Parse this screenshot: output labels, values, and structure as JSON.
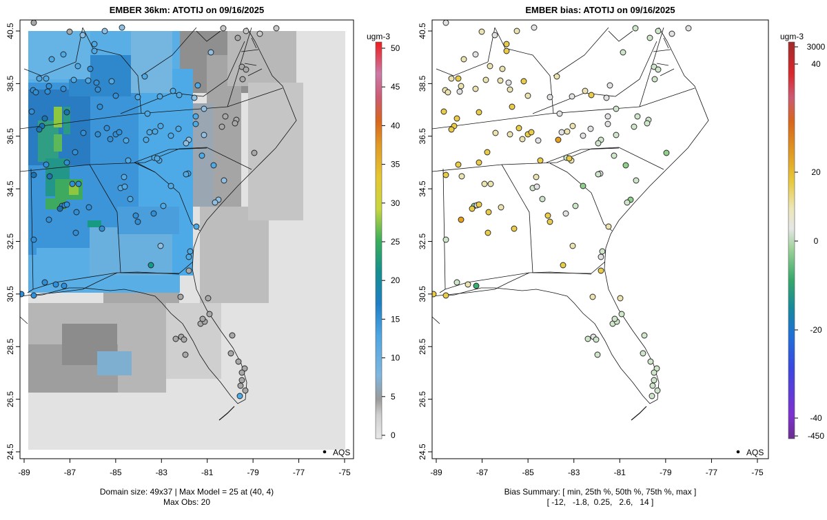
{
  "left_panel": {
    "title": "EMBER 36km: ATOTIJ on 09/16/2025",
    "legend_label": "AQS",
    "footer_line1": "Domain size: 49x37 | Max Model = 25 at (40, 4)",
    "footer_line2": "Max Obs: 20",
    "colorbar": {
      "unit": "ugm-3",
      "min": 0,
      "max": 50,
      "ticks": [
        "0",
        "5",
        "10",
        "15",
        "20",
        "25",
        "30",
        "35",
        "40",
        "45",
        "50"
      ]
    }
  },
  "right_panel": {
    "title": "EMBER bias: ATOTIJ on 09/16/2025",
    "legend_label": "AQS",
    "footer_line1": "Bias Summary: [ min, 25th %, 50th %, 75th %, max ]",
    "footer_line2": "[ -12,   -1.8,  0.25,   2.6,   14 ]",
    "colorbar": {
      "unit": "ugm-3",
      "ticks": [
        "3000",
        "40",
        "20",
        "0",
        "-20",
        "-40",
        "-450"
      ]
    }
  },
  "axes": {
    "x_ticks": [
      "-89",
      "-87",
      "-85",
      "-83",
      "-81",
      "-79",
      "-77",
      "-75"
    ],
    "y_ticks": [
      "24.5",
      "26.5",
      "28.5",
      "30.5",
      "32.5",
      "34.5",
      "36.5",
      "38.5",
      "40.5"
    ],
    "x_range": [
      -89.3,
      -74.6
    ],
    "y_range": [
      24.4,
      40.6
    ]
  },
  "colors": {
    "concentration_scale": [
      "#e2e2e2",
      "#c8c8c8",
      "#a8a8a8",
      "#8fbfe3",
      "#4eaae6",
      "#2f8fd8",
      "#1a74b4",
      "#139a8c",
      "#3caf5a",
      "#8dc63f",
      "#e5d43a",
      "#e0a12a",
      "#d9621c",
      "#c44d6b",
      "#c97aa7",
      "#e83030"
    ],
    "bias_scale": [
      "#6a2ea0",
      "#3d3fd6",
      "#2c7cd6",
      "#17a0a0",
      "#3aae6e",
      "#8fd08a",
      "#cfe6cb",
      "#e2e2e2",
      "#ebe3b0",
      "#e8cc4a",
      "#e5a020",
      "#d9621c",
      "#d23a3a",
      "#c0302a"
    ]
  }
}
